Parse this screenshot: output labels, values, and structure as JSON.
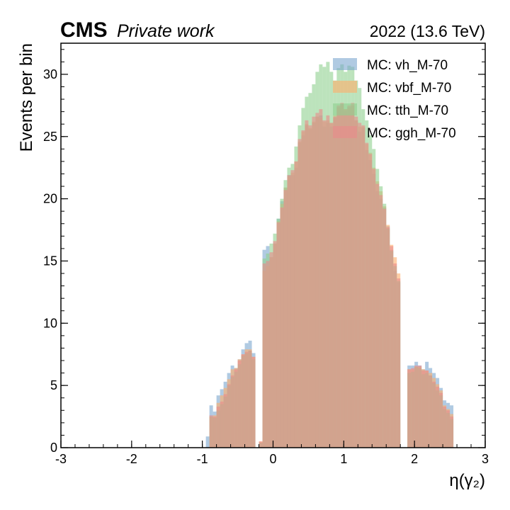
{
  "header": {
    "experiment": "CMS",
    "status": "Private work",
    "lumi": "2022 (13.6 TeV)"
  },
  "chart_data": {
    "type": "histogram",
    "xlabel": "η(γ₂)",
    "ylabel": "Events per bin",
    "xlim": [
      -3,
      3
    ],
    "ylim": [
      0,
      32.5
    ],
    "xticks": [
      "-3",
      "-2",
      "-1",
      "0",
      "1",
      "2",
      "3"
    ],
    "yticks": [
      "0",
      "5",
      "10",
      "15",
      "20",
      "25",
      "30"
    ],
    "legend_position": "top-right",
    "grid": false,
    "bin_edges": [
      -2.6,
      -2.55,
      -2.5,
      -2.45,
      -2.4,
      -2.35,
      -2.3,
      -2.25,
      -2.2,
      -2.15,
      -2.1,
      -2.05,
      -2.0,
      -1.95,
      -1.9,
      -1.85,
      -1.8,
      -1.75,
      -1.7,
      -1.65,
      -1.6,
      -1.55,
      -1.5,
      -1.45,
      -1.4,
      -1.35,
      -1.3,
      -1.25,
      -1.2,
      -1.15,
      -1.1,
      -1.05,
      -1.0,
      -0.95,
      -0.9,
      -0.85,
      -0.8,
      -0.75,
      -0.7,
      -0.65,
      -0.6,
      -0.55,
      -0.5,
      -0.45,
      -0.4,
      -0.35,
      -0.3,
      -0.25,
      -0.2,
      -0.15,
      -0.1,
      -0.05,
      0.0,
      0.05,
      0.1,
      0.15,
      0.2,
      0.25,
      0.3,
      0.35,
      0.4,
      0.45,
      0.5,
      0.55,
      0.6,
      0.65,
      0.7,
      0.75,
      0.8,
      0.85,
      0.9,
      0.95,
      1.0,
      1.05,
      1.1,
      1.15,
      1.2,
      1.25,
      1.3,
      1.35,
      1.4,
      1.45,
      1.5,
      1.55,
      1.6,
      1.65,
      1.7,
      1.75,
      1.8,
      1.85,
      1.9,
      1.95,
      2.0,
      2.05,
      2.1,
      2.15,
      2.2,
      2.25,
      2.3,
      2.35,
      2.4,
      2.45,
      2.5,
      2.55,
      2.6
    ],
    "series": [
      {
        "name": "MC: vh_M-70",
        "color": "#7ba7cf",
        "values": [
          0,
          0.9,
          3.4,
          2.9,
          4.2,
          4.7,
          5.3,
          6.0,
          6.6,
          6.4,
          7.1,
          7.9,
          8.4,
          8.6,
          7.6,
          0,
          0.4,
          15.9,
          16.2,
          15.3,
          16.4,
          18.4,
          19.8,
          20.9,
          21.9,
          21.9,
          22.5,
          24.5,
          25.1,
          25.9,
          25.6,
          26.1,
          26.6,
          26.7,
          25.8,
          26.1,
          25.8,
          26.5,
          27.4,
          27.6,
          27.0,
          27.4,
          27.5,
          26.3,
          25.4,
          25.7,
          23.9,
          23.1,
          22.0,
          20.6,
          20.0,
          19.3,
          17.8,
          15.9,
          14.2,
          13.3,
          0,
          0,
          6.6,
          6.6,
          6.9,
          6.6,
          6.3,
          6.9,
          6.4,
          6.0,
          5.6,
          4.8,
          3.8,
          3.6,
          3.4,
          0
        ],
        "start_bin": 30
      },
      {
        "name": "MC: vbf_M-70",
        "color": "#ffad6a",
        "values": [
          0,
          0,
          2.5,
          2.6,
          3.6,
          4.2,
          4.8,
          5.5,
          6.3,
          6.4,
          7.1,
          7.5,
          7.9,
          7.9,
          7.3,
          0,
          0.5,
          14.2,
          14.6,
          15.3,
          16.4,
          18.2,
          19.6,
          20.9,
          21.8,
          22.1,
          23.0,
          24.6,
          25.4,
          26.0,
          25.7,
          26.2,
          26.6,
          26.5,
          26.2,
          26.3,
          26.1,
          26.7,
          27.3,
          27.5,
          27.2,
          27.3,
          27.5,
          26.3,
          25.8,
          25.8,
          24.4,
          23.7,
          22.5,
          21.4,
          20.6,
          19.4,
          17.9,
          16.3,
          15.3,
          14.0,
          0,
          0,
          6.3,
          6.3,
          6.5,
          6.5,
          6.3,
          6.2,
          6.0,
          5.6,
          5.1,
          4.6,
          3.4,
          3.1,
          2.7,
          0
        ],
        "start_bin": 30
      },
      {
        "name": "MC: tth_M-70",
        "color": "#8fd08f",
        "values": [
          0,
          0,
          2.5,
          2.4,
          3.0,
          3.5,
          4.1,
          5.0,
          5.7,
          6.1,
          6.7,
          7.4,
          7.6,
          7.8,
          7.1,
          0,
          0.4,
          15.2,
          15.6,
          16.4,
          17.2,
          18.4,
          20.0,
          21.5,
          22.5,
          22.8,
          24.2,
          25.9,
          27.3,
          28.2,
          28.5,
          29.2,
          30.2,
          30.8,
          30.6,
          31.0,
          30.2,
          29.5,
          30.5,
          30.8,
          30.2,
          30.7,
          30.6,
          29.5,
          28.9,
          27.2,
          26.3,
          25.1,
          24.0,
          22.4,
          21.0,
          19.6,
          17.6,
          15.8,
          14.6,
          13.4,
          0,
          0,
          6.0,
          6.1,
          6.5,
          6.4,
          5.9,
          6.0,
          5.8,
          5.2,
          4.6,
          4.2,
          3.1,
          2.8,
          2.3,
          0
        ],
        "start_bin": 30
      },
      {
        "name": "MC: ggh_M-70",
        "color": "#e98b8b",
        "values": [
          0,
          0,
          2.6,
          2.5,
          3.3,
          3.7,
          4.3,
          5.1,
          5.8,
          6.3,
          7.0,
          7.5,
          7.7,
          7.8,
          7.3,
          0,
          0.5,
          14.8,
          15.0,
          15.7,
          16.6,
          18.1,
          19.3,
          20.7,
          21.9,
          22.3,
          23.0,
          24.8,
          25.5,
          26.3,
          25.9,
          26.6,
          26.9,
          27.2,
          26.3,
          26.7,
          26.1,
          26.6,
          27.5,
          27.7,
          27.2,
          27.5,
          27.7,
          26.6,
          26.1,
          25.9,
          24.5,
          23.6,
          22.4,
          21.2,
          20.3,
          19.2,
          17.7,
          16.2,
          14.8,
          13.6,
          0,
          0,
          6.3,
          6.4,
          6.6,
          6.6,
          6.2,
          6.2,
          5.8,
          5.3,
          4.9,
          4.4,
          3.3,
          3.0,
          2.5,
          0
        ],
        "start_bin": 30
      }
    ]
  }
}
